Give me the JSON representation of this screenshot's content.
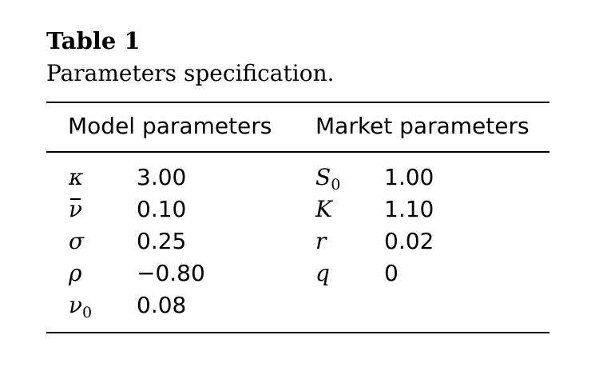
{
  "caption": {
    "label": "Table 1",
    "title": "Parameters specification."
  },
  "headers": {
    "model": "Model parameters",
    "market": "Market parameters"
  },
  "model_rows": [
    {
      "symbol": "κ",
      "subscript": "",
      "value": "3.00"
    },
    {
      "symbol": "ν",
      "subscript": "",
      "value": "0.10"
    },
    {
      "symbol": "σ",
      "subscript": "",
      "value": "0.25"
    },
    {
      "symbol": "ρ",
      "subscript": "",
      "value": "−0.80"
    },
    {
      "symbol": "ν",
      "subscript": "0",
      "value": "0.08"
    }
  ],
  "market_rows": [
    {
      "symbol": "S",
      "subscript": "0",
      "value": "1.00"
    },
    {
      "symbol": "K",
      "subscript": "",
      "value": "1.10"
    },
    {
      "symbol": "r",
      "subscript": "",
      "value": "0.02"
    },
    {
      "symbol": "q",
      "subscript": "",
      "value": "0"
    }
  ]
}
